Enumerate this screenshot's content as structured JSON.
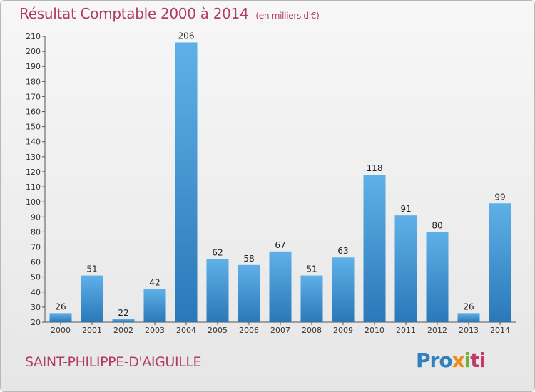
{
  "header": {
    "title": "Résultat Comptable 2000 à 2014",
    "subtitle": "(en milliers d'€)"
  },
  "footer": {
    "town": "SAINT-PHILIPPE-D'AIGUILLE",
    "logo": [
      "Pro",
      "x",
      "i",
      "ti"
    ]
  },
  "colors": {
    "title": "#b23b5e",
    "bar_top": "#5fb0e8",
    "bar_bottom": "#2a78b8"
  },
  "chart_data": {
    "type": "bar",
    "title": "Résultat Comptable 2000 à 2014",
    "categories": [
      "2000",
      "2001",
      "2002",
      "2003",
      "2004",
      "2005",
      "2006",
      "2007",
      "2008",
      "2009",
      "2010",
      "2011",
      "2012",
      "2013",
      "2014"
    ],
    "values": [
      26,
      51,
      22,
      42,
      206,
      62,
      58,
      67,
      51,
      63,
      118,
      91,
      80,
      26,
      99
    ],
    "ylim": [
      20,
      210
    ],
    "yticks": [
      20,
      30,
      40,
      50,
      60,
      70,
      80,
      90,
      100,
      110,
      120,
      130,
      140,
      150,
      160,
      170,
      180,
      190,
      200,
      210
    ],
    "grid": false
  }
}
